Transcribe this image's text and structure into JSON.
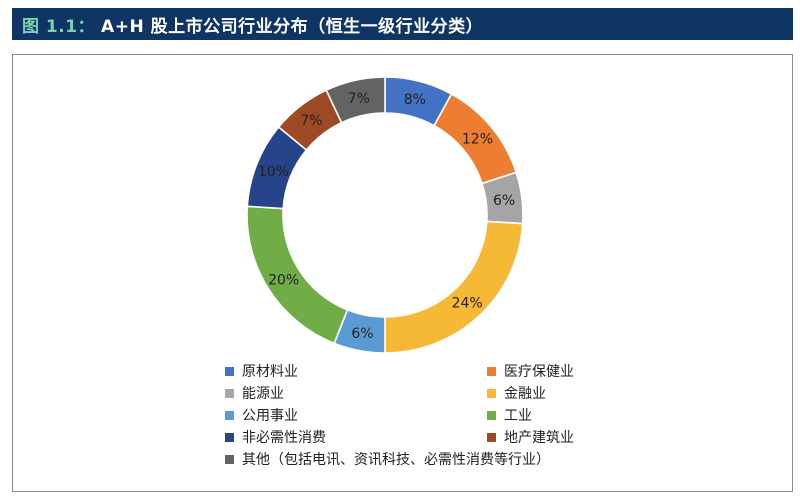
{
  "title": {
    "prefix": "图 1.1：",
    "text": "A+H 股上市公司行业分布（恒生一级行业分类）"
  },
  "chart_data": {
    "type": "pie",
    "donut": true,
    "title": "",
    "slices": [
      {
        "label": "原材料业",
        "value": 8,
        "value_label": "8%",
        "color": "#4472c4"
      },
      {
        "label": "医疗保健业",
        "value": 12,
        "value_label": "12%",
        "color": "#ed7d31"
      },
      {
        "label": "能源业",
        "value": 6,
        "value_label": "6%",
        "color": "#a5a5a5"
      },
      {
        "label": "金融业",
        "value": 24,
        "value_label": "24%",
        "color": "#f5b935"
      },
      {
        "label": "公用事业",
        "value": 6,
        "value_label": "6%",
        "color": "#5b9bd5"
      },
      {
        "label": "工业",
        "value": 20,
        "value_label": "20%",
        "color": "#70ad47"
      },
      {
        "label": "非必需性消费",
        "value": 10,
        "value_label": "10%",
        "color": "#27438a"
      },
      {
        "label": "地产建筑业",
        "value": 7,
        "value_label": "7%",
        "color": "#9e4a25"
      },
      {
        "label": "其他（包括电讯、资讯科技、必需性消费等行业）",
        "value": 7,
        "value_label": "7%",
        "color": "#636363"
      }
    ],
    "legend_position": "bottom"
  }
}
